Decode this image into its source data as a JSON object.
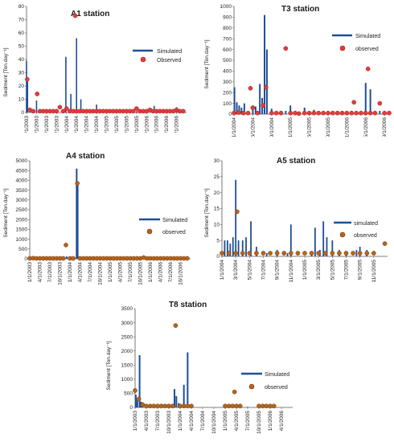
{
  "colors": {
    "simulated": "#1f4e96",
    "observed_fill": "#e23b3b",
    "observed_stroke": "#9c2a20",
    "observed_fill_alt": "#b5651d",
    "observed_stroke_alt": "#6b3a12",
    "axis": "#555555"
  },
  "chart_data": [
    {
      "id": "A1",
      "type": "bar",
      "title": "A1 station",
      "ylabel": "Sediment [Ton.day⁻¹]",
      "xlabel": "",
      "ylim": [
        0,
        80
      ],
      "yticks": [
        0,
        10,
        20,
        30,
        40,
        50,
        60,
        70,
        80
      ],
      "xlim": [
        0,
        48
      ],
      "xtick_labels": [
        "1/1/2003",
        "4/1/2003",
        "7/1/2003",
        "10/1/2003",
        "1/1/2004",
        "4/1/2004",
        "7/1/2004",
        "10/1/2004",
        "1/1/2005",
        "4/1/2005",
        "7/1/2005",
        "10/1/2005",
        "1/1/2006",
        "4/1/2006",
        "7/1/2006",
        "10/1/2006"
      ],
      "xtick_pos": [
        0,
        3,
        6,
        9,
        12,
        15,
        18,
        21,
        24,
        27,
        30,
        33,
        36,
        39,
        42,
        45
      ],
      "legend": {
        "simulated": "Simulated",
        "observed": "Observed",
        "position": "top-right"
      },
      "observed_style": "red",
      "series": [
        {
          "name": "Simulated",
          "kind": "bar",
          "x": [
            0.0,
            0.3,
            3.0,
            6.0,
            9.0,
            11.8,
            13.3,
            15.0,
            16.3,
            18.0,
            21.0,
            24.0,
            27.0,
            30.0,
            33.0,
            36.3,
            38.3,
            42.0,
            45.0
          ],
          "y": [
            39,
            24,
            9,
            1,
            2,
            42,
            14,
            56,
            10,
            2,
            6,
            1,
            1,
            1,
            1,
            2,
            5,
            1,
            4
          ]
        },
        {
          "name": "Observed",
          "kind": "point",
          "x": [
            0.2,
            1.0,
            2.0,
            3.2,
            4.0,
            5.0,
            6.0,
            7.0,
            8.0,
            9.0,
            10.0,
            11.0,
            12.0,
            13.0,
            14.0,
            14.6,
            15.0,
            16.0,
            17.0,
            18.0,
            19.0,
            20.0,
            21.0,
            22.0,
            23.0,
            24.0,
            25.0,
            26.0,
            27.0,
            28.0,
            29.0,
            30.0,
            31.0,
            32.0,
            33.0,
            34.0,
            35.0,
            36.0,
            37.0,
            38.0,
            39.0,
            40.0,
            41.0,
            42.0,
            43.0,
            44.0,
            45.0,
            46.0,
            47.0
          ],
          "y": [
            25,
            2,
            1,
            14,
            1,
            1,
            1,
            1,
            1,
            1,
            4,
            1,
            3,
            1,
            1,
            73,
            1,
            1,
            1,
            1,
            1,
            1,
            1,
            1,
            1,
            1,
            1,
            1,
            1,
            1,
            1,
            1,
            1,
            1,
            3,
            1,
            1,
            1,
            2,
            1,
            1,
            1,
            1,
            1,
            1,
            1,
            2,
            1,
            1
          ]
        }
      ]
    },
    {
      "id": "T3",
      "type": "bar",
      "title": "T3 station",
      "ylabel": "Sediment [Ton.day⁻¹]",
      "xlabel": "",
      "ylim": [
        0,
        1000
      ],
      "yticks": [
        0,
        100,
        200,
        300,
        400,
        500,
        600,
        700,
        800,
        900,
        1000
      ],
      "xlim": [
        0,
        33
      ],
      "xtick_labels": [
        "1/1/2004",
        "5/1/2004",
        "9/1/2004",
        "1/1/2005",
        "5/1/2005",
        "9/1/2005",
        "1/1/2006",
        "5/1/2006",
        "9/1/2006"
      ],
      "xtick_pos": [
        0,
        4,
        8,
        12,
        16,
        20,
        24,
        28,
        32
      ],
      "legend": {
        "simulated": "Simulated",
        "observed": "observed",
        "position": "top-right"
      },
      "observed_style": "red",
      "series": [
        {
          "name": "Simulated",
          "kind": "bar",
          "x": [
            0.1,
            0.6,
            1.1,
            1.6,
            2.2,
            4.0,
            4.6,
            5.5,
            6.0,
            6.5,
            7.0,
            8.0,
            10.0,
            11.0,
            12.0,
            15.0,
            17.0,
            19.0,
            21.0,
            25.0,
            28.0,
            29.0,
            31.0
          ],
          "y": [
            250,
            110,
            80,
            60,
            100,
            60,
            70,
            280,
            150,
            920,
            600,
            50,
            30,
            30,
            80,
            60,
            40,
            20,
            20,
            30,
            290,
            230,
            30
          ]
        },
        {
          "name": "Observed",
          "kind": "point",
          "x": [
            0.0,
            1.0,
            2.0,
            3.0,
            3.5,
            4.0,
            5.0,
            6.2,
            6.8,
            8.0,
            9.0,
            10.0,
            11.0,
            12.0,
            13.0,
            13.8,
            15.0,
            16.0,
            17.0,
            18.0,
            19.0,
            20.0,
            21.0,
            22.0,
            23.0,
            24.0,
            25.0,
            25.5,
            26.0,
            27.0,
            28.0,
            28.5,
            29.0,
            30.0,
            31.0,
            32.0,
            33.0
          ],
          "y": [
            10,
            15,
            10,
            10,
            240,
            60,
            10,
            80,
            250,
            10,
            10,
            10,
            610,
            10,
            10,
            5,
            10,
            10,
            10,
            10,
            10,
            10,
            10,
            10,
            10,
            10,
            10,
            110,
            10,
            10,
            10,
            420,
            10,
            10,
            100,
            10,
            10
          ]
        }
      ]
    },
    {
      "id": "A4",
      "type": "bar",
      "title": "A4 station",
      "ylabel": "Sediment [Ton.day⁻¹]",
      "xlabel": "",
      "ylim": [
        0,
        5000
      ],
      "yticks": [
        0,
        500,
        1000,
        1500,
        2000,
        2500,
        3000,
        3500,
        4000,
        4500,
        5000
      ],
      "xlim": [
        0,
        48
      ],
      "xtick_labels": [
        "1/1/2003",
        "4/1/2003",
        "7/1/2003",
        "10/1/2003",
        "1/1/2004",
        "4/1/2004",
        "7/1/2004",
        "10/1/2004",
        "1/1/2005",
        "4/1/2005",
        "7/1/2005",
        "10/1/2005",
        "1/1/2006",
        "4/1/2006",
        "7/1/2006",
        "10/1/2006"
      ],
      "xtick_pos": [
        0,
        3,
        6,
        9,
        12,
        15,
        18,
        21,
        24,
        27,
        30,
        33,
        36,
        39,
        42,
        45
      ],
      "legend": {
        "simulated": "Simulated",
        "observed": "observed",
        "position": "top-right"
      },
      "observed_style": "brown",
      "series": [
        {
          "name": "Simulated",
          "kind": "bar",
          "x": [
            14.0,
            14.3,
            11.0
          ],
          "y": [
            4600,
            3800,
            120
          ]
        },
        {
          "name": "Observed",
          "kind": "point",
          "x": [
            0,
            1,
            2,
            3,
            4,
            5,
            6,
            7,
            8,
            9,
            10,
            10.8,
            12,
            13,
            14.2,
            15,
            16,
            17,
            18,
            19,
            20,
            21,
            22,
            23,
            24,
            25,
            26,
            27,
            28,
            29,
            30,
            31,
            32,
            33,
            34,
            35,
            36,
            37,
            38,
            39,
            40,
            41,
            42,
            43,
            44,
            45,
            46,
            47
          ],
          "y": [
            20,
            30,
            20,
            20,
            20,
            20,
            20,
            20,
            20,
            20,
            20,
            700,
            20,
            20,
            3850,
            20,
            20,
            20,
            20,
            20,
            20,
            20,
            20,
            20,
            20,
            20,
            20,
            20,
            20,
            20,
            20,
            20,
            20,
            20,
            60,
            20,
            20,
            20,
            20,
            20,
            20,
            20,
            20,
            20,
            20,
            20,
            20,
            20
          ]
        }
      ]
    },
    {
      "id": "A5",
      "type": "bar",
      "title": "A5 station",
      "ylabel": "Sediment [Ton.day⁻¹]",
      "xlabel": "",
      "ylim": [
        0,
        30
      ],
      "yticks": [
        0,
        5,
        10,
        15,
        20,
        25,
        30
      ],
      "xlim": [
        0,
        24
      ],
      "xtick_labels": [
        "1/1/2004",
        "3/1/2004",
        "5/1/2004",
        "7/1/2004",
        "9/1/2004",
        "11/1/2004",
        "1/1/2005",
        "3/1/2005",
        "5/1/2005",
        "7/1/2005",
        "9/1/2005",
        "11/1/2005"
      ],
      "xtick_pos": [
        0,
        2,
        4,
        6,
        8,
        10,
        12,
        14,
        16,
        18,
        20,
        22
      ],
      "legend": {
        "simulated": "simulated",
        "observed": "observed",
        "position": "right"
      },
      "observed_style": "brown",
      "series": [
        {
          "name": "simulated",
          "kind": "bar",
          "x": [
            0.4,
            0.8,
            1.2,
            1.6,
            2.0,
            2.4,
            3.0,
            3.5,
            4.2,
            5.0,
            6.5,
            8.0,
            9.5,
            10.0,
            13.0,
            13.5,
            14.2,
            14.7,
            15.2,
            16.0,
            17.0,
            18.0,
            19.5,
            20.0,
            21.0
          ],
          "y": [
            5,
            5,
            4,
            6,
            24,
            5,
            5,
            6,
            11,
            3,
            1,
            2,
            1,
            10,
            1,
            9,
            2,
            11,
            6,
            5,
            2,
            1,
            2,
            3,
            2
          ]
        },
        {
          "name": "observed",
          "kind": "point",
          "x": [
            0,
            1,
            2,
            2.2,
            3,
            4,
            5,
            6,
            7,
            8,
            9,
            10,
            11,
            12,
            13,
            14,
            15,
            16,
            17,
            18,
            19,
            20,
            21,
            22,
            23.6
          ],
          "y": [
            1,
            1,
            1,
            14,
            1,
            1,
            1,
            1,
            1,
            1,
            1,
            1,
            1,
            1,
            1,
            1,
            1,
            1,
            1,
            1,
            1,
            1,
            1,
            1,
            4
          ]
        }
      ]
    },
    {
      "id": "T8",
      "type": "bar",
      "title": "T8 station",
      "ylabel": "Sediment [Ton.day⁻¹]",
      "xlabel": "",
      "ylim": [
        0,
        3500
      ],
      "yticks": [
        0,
        500,
        1000,
        1500,
        2000,
        2500,
        3000,
        3500
      ],
      "xlim": [
        0,
        42
      ],
      "xtick_labels": [
        "1/1/2003",
        "4/1/2003",
        "7/1/2003",
        "10/1/2003",
        "1/1/2004",
        "4/1/2004",
        "7/1/2004",
        "10/1/2004",
        "1/1/2005",
        "4/1/2005",
        "7/1/2005",
        "10/1/2005",
        "1/1/2006",
        "4/1/2006"
      ],
      "xtick_pos": [
        0,
        3,
        6,
        9,
        12,
        15,
        18,
        21,
        24,
        27,
        30,
        33,
        36,
        39
      ],
      "legend": {
        "simulated": "Simulated",
        "observed": "observed",
        "position": "right"
      },
      "observed_style": "brown",
      "series": [
        {
          "name": "Simulated",
          "kind": "bar",
          "x": [
            0.2,
            0.6,
            1.2,
            1.6,
            2.0,
            6.0,
            9.0,
            10.5,
            11.0,
            11.6,
            13.0,
            14.0,
            15.0,
            24.0,
            27.0,
            30.0,
            33.0,
            36.0
          ],
          "y": [
            450,
            250,
            1850,
            200,
            150,
            50,
            80,
            650,
            400,
            150,
            800,
            1950,
            100,
            100,
            100,
            20,
            20,
            100
          ]
        },
        {
          "name": "observed",
          "kind": "point",
          "x": [
            0,
            1,
            2,
            3,
            4,
            5,
            6,
            7,
            8,
            9,
            10,
            10.8,
            12,
            13,
            14,
            15,
            24,
            25,
            26,
            26.5,
            27,
            28,
            33,
            34,
            35,
            36,
            37
          ],
          "y": [
            600,
            300,
            100,
            50,
            50,
            50,
            50,
            50,
            50,
            50,
            50,
            2900,
            50,
            50,
            50,
            50,
            50,
            50,
            50,
            550,
            50,
            50,
            50,
            50,
            50,
            50,
            50
          ]
        }
      ]
    }
  ]
}
